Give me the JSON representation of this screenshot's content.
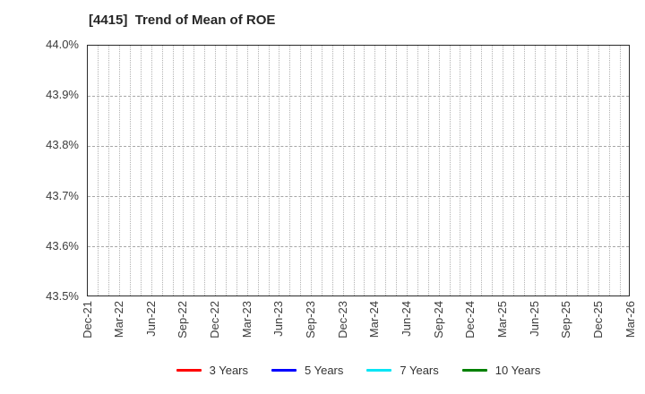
{
  "title": "[4415]  Trend of Mean of ROE",
  "chart_data": {
    "type": "line",
    "title": "[4415]  Trend of Mean of ROE",
    "xlabel": "",
    "ylabel": "",
    "x": [
      "Dec-21",
      "Mar-22",
      "Jun-22",
      "Sep-22",
      "Dec-22",
      "Mar-23",
      "Jun-23",
      "Sep-23",
      "Dec-23",
      "Mar-24",
      "Jun-24",
      "Sep-24",
      "Dec-24",
      "Mar-25",
      "Jun-25",
      "Sep-25",
      "Dec-25",
      "Mar-26"
    ],
    "x_minor_intervals_per_major_tick": 3,
    "y_tick_labels": [
      "44.0%",
      "43.9%",
      "43.8%",
      "43.7%",
      "43.6%",
      "43.5%"
    ],
    "ylim": [
      43.5,
      44.0
    ],
    "grid": {
      "show": true,
      "vertical": "monthly dotted",
      "horizontal": "dashed every 0.1%"
    },
    "legend_position": "bottom-center",
    "series": [
      {
        "name": "3 Years",
        "color": "#ff0000",
        "values": []
      },
      {
        "name": "5 Years",
        "color": "#0000ff",
        "values": []
      },
      {
        "name": "7 Years",
        "color": "#07e5f5",
        "values": []
      },
      {
        "name": "10 Years",
        "color": "#008000",
        "values": []
      }
    ],
    "data_lines_visible": false
  },
  "colors": {
    "background": "#ffffff",
    "title_text": "#262626",
    "tick_text": "#3c3c3c",
    "grid": "#b3b3b3",
    "plot_border": "#2b2b2b"
  }
}
